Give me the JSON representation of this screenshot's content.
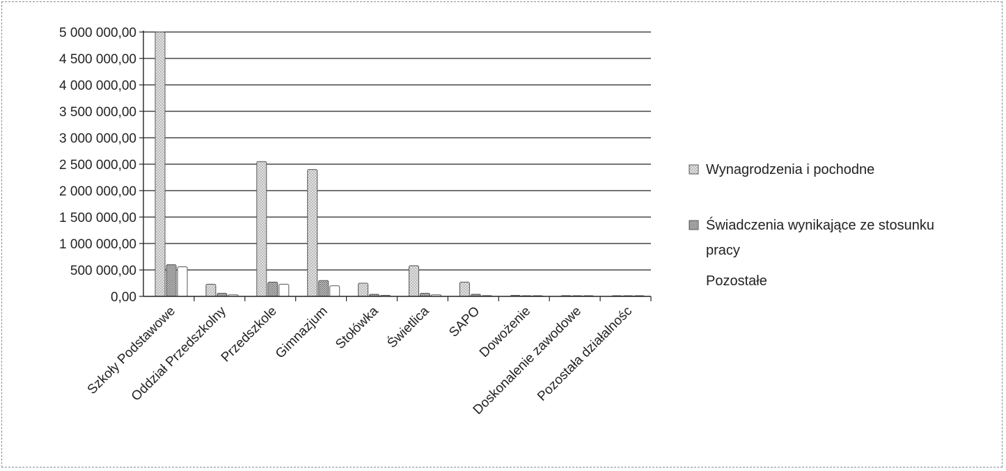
{
  "chart_data": {
    "type": "bar",
    "title": "",
    "xlabel": "",
    "ylabel": "",
    "ylim": [
      0,
      5000000
    ],
    "yticks": [
      0,
      500000,
      1000000,
      1500000,
      2000000,
      2500000,
      3000000,
      3500000,
      4000000,
      4500000,
      5000000
    ],
    "ytick_labels": [
      "0,00",
      "500 000,00",
      "1 000 000,00",
      "1 500 000,00",
      "2 000 000,00",
      "2 500 000,00",
      "3 000 000,00",
      "3 500 000,00",
      "4 000 000,00",
      "4 500 000,00",
      "5 000 000,00"
    ],
    "grid": true,
    "legend_position": "right",
    "categories": [
      "Szkoły Podstawowe",
      "Oddział Przedszkolny",
      "Przedszkole",
      "Gimnazjum",
      "Stołówka",
      "Świetlica",
      "SAPO",
      "Dowożenie",
      "Doskonalenie zawodowe",
      "Pozostała działalnośc"
    ],
    "series": [
      {
        "name": "Wynagrodzenia i pochodne",
        "color": "#c8c8c8",
        "values": [
          5000000,
          230000,
          2550000,
          2400000,
          250000,
          580000,
          270000,
          20000,
          15000,
          10000
        ]
      },
      {
        "name": "Świadczenia wynikające ze stosunku pracy",
        "color": "#9a9a9a",
        "values": [
          600000,
          60000,
          270000,
          300000,
          40000,
          60000,
          40000,
          5000,
          5000,
          5000
        ]
      },
      {
        "name": "Pozostałe",
        "color": "#ffffff",
        "values": [
          560000,
          30000,
          230000,
          200000,
          20000,
          30000,
          15000,
          5000,
          5000,
          5000
        ]
      }
    ]
  }
}
